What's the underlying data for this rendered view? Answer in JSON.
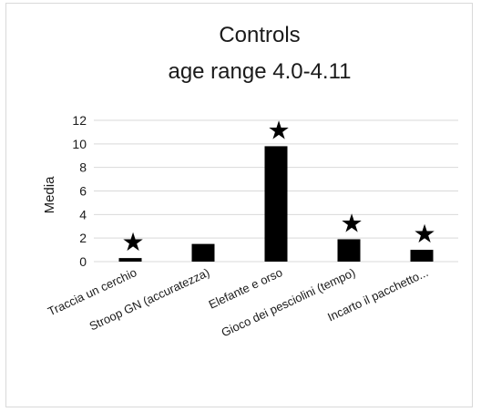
{
  "chart_data": {
    "type": "bar",
    "title_lines": [
      "Controls",
      "age range 4.0-4.11"
    ],
    "ylabel": "Media",
    "xlabel": "",
    "ylim": [
      0,
      12
    ],
    "yticks": [
      0,
      2,
      4,
      6,
      8,
      10,
      12
    ],
    "grid": true,
    "legend": "none",
    "categories": [
      "Traccia un cerchio",
      "Stroop GN (accuratezza)",
      "Elefante e orso",
      "Gioco dei pesciolini (tempo)",
      "Incarto il pacchetto..."
    ],
    "values": [
      0.3,
      1.5,
      9.8,
      1.9,
      1.0
    ],
    "significance_marks": [
      true,
      false,
      true,
      true,
      true
    ],
    "star_symbol": "★",
    "bar_color": "#000000",
    "grid_color": "#d9d9d9",
    "star_color": "#000000"
  }
}
